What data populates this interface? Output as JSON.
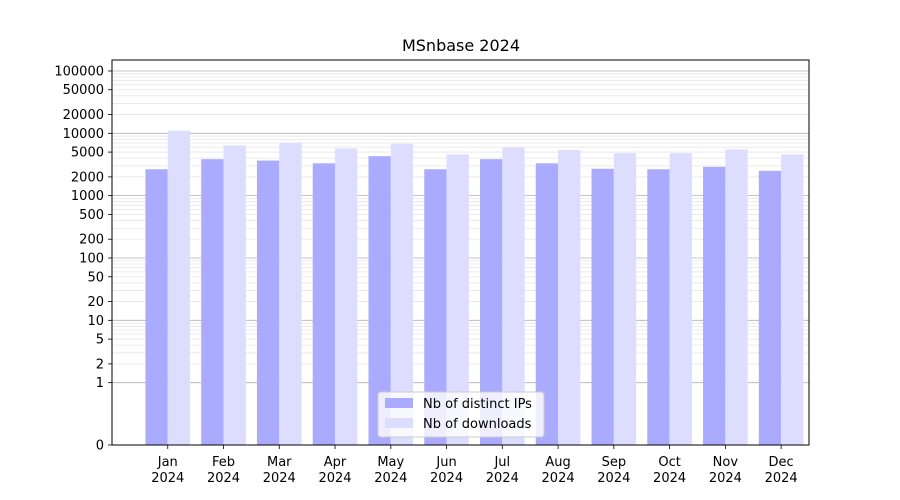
{
  "chart_data": {
    "type": "bar",
    "title": "MSnbase 2024",
    "xlabel": "",
    "ylabel": "",
    "yscale": "symlog",
    "ylim": [
      0,
      150000
    ],
    "yticks": [
      0,
      1,
      2,
      5,
      10,
      20,
      50,
      100,
      200,
      500,
      1000,
      2000,
      5000,
      10000,
      20000,
      50000,
      100000
    ],
    "grid": "y",
    "legend_placement": "lower center",
    "categories": [
      "Jan\n2024",
      "Feb\n2024",
      "Mar\n2024",
      "Apr\n2024",
      "May\n2024",
      "Jun\n2024",
      "Jul\n2024",
      "Aug\n2024",
      "Sep\n2024",
      "Oct\n2024",
      "Nov\n2024",
      "Dec\n2024"
    ],
    "series": [
      {
        "name": "Nb of distinct IPs",
        "color": "#aaaaff",
        "values": [
          2650,
          3850,
          3650,
          3300,
          4300,
          2650,
          3850,
          3300,
          2700,
          2650,
          2900,
          2500
        ]
      },
      {
        "name": "Nb of downloads",
        "color": "#ddddff",
        "values": [
          11000,
          6400,
          7100,
          5700,
          6800,
          4600,
          5900,
          5400,
          4800,
          4800,
          5500,
          4600
        ]
      }
    ]
  }
}
